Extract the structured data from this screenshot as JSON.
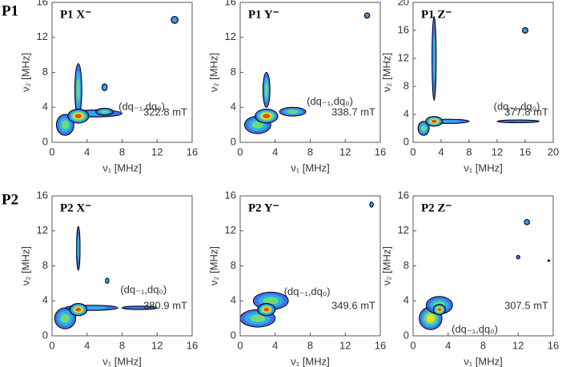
{
  "row_labels": [
    "P1",
    "P2"
  ],
  "chart_data": [
    {
      "type": "contour",
      "title": "P1 X⁻",
      "annotation": "(dq₋₁,dq₀)",
      "field": "322.8 mT",
      "x_label": "ν₁ [MHz]",
      "y_label": "ν₂ [MHz]",
      "xlim": [
        0,
        16
      ],
      "ylim": [
        0,
        16
      ],
      "xticks": [
        0,
        4,
        8,
        12,
        16
      ],
      "yticks": [
        0,
        4,
        8,
        12,
        16
      ],
      "peaks": {
        "x": [
          1.5,
          3,
          5,
          6,
          6,
          14,
          3
        ],
        "y": [
          2,
          6,
          3.3,
          3.5,
          6.3,
          14,
          3
        ],
        "rx": [
          1,
          0.4,
          3,
          1,
          0.3,
          0.4,
          1.2
        ],
        "ry": [
          1.2,
          3,
          0.4,
          0.4,
          0.4,
          0.4,
          0.8
        ],
        "level": [
          3,
          3,
          2,
          3,
          2,
          2,
          5
        ]
      }
    },
    {
      "type": "contour",
      "title": "P1 Y⁻",
      "annotation": "(dq₋₁,dq₀)",
      "field": "338.7 mT",
      "x_label": "ν₁ [MHz]",
      "y_label": "ν₂ [MHz]",
      "xlim": [
        0,
        16
      ],
      "ylim": [
        0,
        16
      ],
      "xticks": [
        0,
        4,
        8,
        12,
        16
      ],
      "yticks": [
        0,
        4,
        8,
        12,
        16
      ],
      "peaks": {
        "x": [
          2,
          3,
          6,
          14.5,
          3
        ],
        "y": [
          2,
          6,
          3.5,
          14.5,
          3
        ],
        "rx": [
          1.5,
          0.4,
          1.5,
          0.3,
          1.3
        ],
        "ry": [
          1,
          2,
          0.5,
          0.3,
          0.8
        ],
        "level": [
          3,
          3,
          3,
          2,
          5
        ]
      }
    },
    {
      "type": "contour",
      "title": "P1 Z⁻",
      "annotation": "(dq₋₁,dq₀)",
      "field": "377.8 mT",
      "x_label": "ν₁ [MHz]",
      "y_label": "ν₂ [MHz]",
      "xlim": [
        0,
        20
      ],
      "ylim": [
        0,
        20
      ],
      "xticks": [
        0,
        4,
        8,
        12,
        16,
        20
      ],
      "yticks": [
        0,
        4,
        8,
        12,
        16,
        20
      ],
      "peaks": {
        "x": [
          1.5,
          3,
          5,
          15,
          16,
          3
        ],
        "y": [
          2,
          12,
          3,
          3,
          16,
          3
        ],
        "rx": [
          0.8,
          0.3,
          3,
          3,
          0.4,
          1.2
        ],
        "ry": [
          1,
          6,
          0.3,
          0.2,
          0.4,
          0.7
        ],
        "level": [
          3,
          2,
          2,
          1,
          2,
          5
        ]
      }
    },
    {
      "type": "contour",
      "title": "P2 X⁻",
      "annotation": "(dq₋₁,dq₀)",
      "field": "380.9 mT",
      "x_label": "ν₁ [MHz]",
      "y_label": "ν₂ [MHz]",
      "xlim": [
        0,
        16
      ],
      "ylim": [
        0,
        16
      ],
      "xticks": [
        0,
        4,
        8,
        12,
        16
      ],
      "yticks": [
        0,
        4,
        8,
        12,
        16
      ],
      "peaks": {
        "x": [
          1.5,
          3,
          4.5,
          10,
          6.3,
          3
        ],
        "y": [
          2,
          10,
          3.2,
          3.2,
          6.3,
          3
        ],
        "rx": [
          1.2,
          0.2,
          3,
          2,
          0.2,
          1
        ],
        "ry": [
          1.2,
          2.5,
          0.3,
          0.2,
          0.3,
          0.7
        ],
        "level": [
          3,
          2,
          2,
          1,
          2,
          5
        ]
      }
    },
    {
      "type": "contour",
      "title": "P2 Y⁻",
      "annotation": "(dq₋₁,dq₀)",
      "field": "349.6 mT",
      "x_label": "ν₁ [MHz]",
      "y_label": "ν₂ [MHz]",
      "xlim": [
        0,
        16
      ],
      "ylim": [
        0,
        16
      ],
      "xticks": [
        0,
        4,
        8,
        12,
        16
      ],
      "yticks": [
        0,
        4,
        8,
        12,
        16
      ],
      "peaks": {
        "x": [
          2,
          3.5,
          15,
          3
        ],
        "y": [
          2,
          4,
          15,
          3
        ],
        "rx": [
          2,
          2,
          0.2,
          1
        ],
        "ry": [
          1,
          1,
          0.3,
          0.7
        ],
        "level": [
          3,
          3,
          2,
          5
        ]
      }
    },
    {
      "type": "contour",
      "title": "P2 Z⁻",
      "annotation": "(dq₋₁,dq₀)",
      "field": "307.5 mT",
      "x_label": "ν₁ [MHz]",
      "y_label": "ν₂ [MHz]",
      "xlim": [
        0,
        16
      ],
      "ylim": [
        0,
        16
      ],
      "xticks": [
        0,
        4,
        8,
        12,
        16
      ],
      "yticks": [
        0,
        4,
        8,
        12,
        16
      ],
      "peaks": {
        "x": [
          2,
          3,
          13,
          12,
          15.5,
          3
        ],
        "y": [
          2,
          3.5,
          13,
          9,
          8.6,
          3
        ],
        "rx": [
          1.3,
          1.5,
          0.3,
          0.2,
          0.1,
          0.7
        ],
        "ry": [
          1.3,
          1,
          0.3,
          0.2,
          0.1,
          0.6
        ],
        "level": [
          4,
          3,
          2,
          1,
          1,
          5
        ]
      }
    }
  ]
}
